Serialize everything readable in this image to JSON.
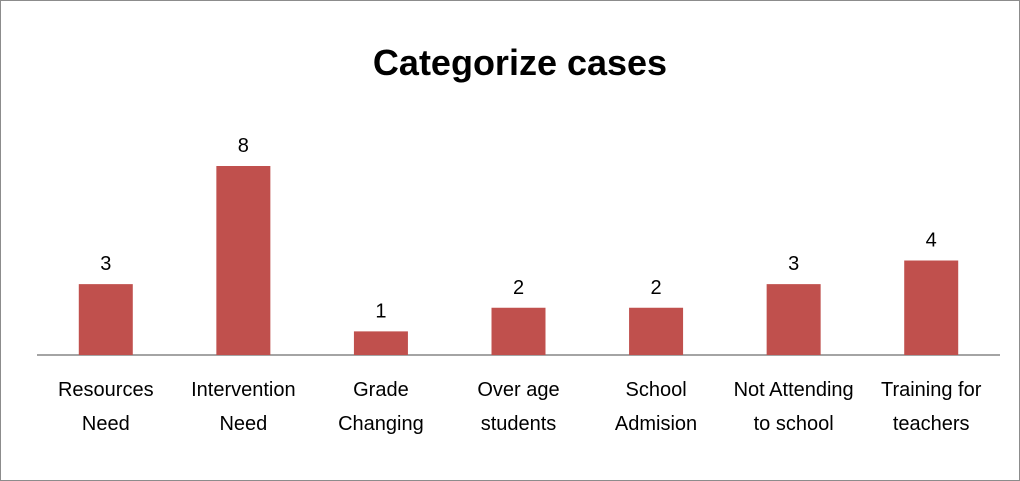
{
  "chart_data": {
    "type": "bar",
    "title": "Categorize cases",
    "categories": [
      "Resources Need",
      "Intervention Need",
      "Grade Changing",
      "Over age students",
      "School Admision",
      "Not Attending to school",
      "Training for teachers"
    ],
    "values": [
      3,
      8,
      1,
      2,
      2,
      3,
      4
    ],
    "color": "#c0504d"
  }
}
